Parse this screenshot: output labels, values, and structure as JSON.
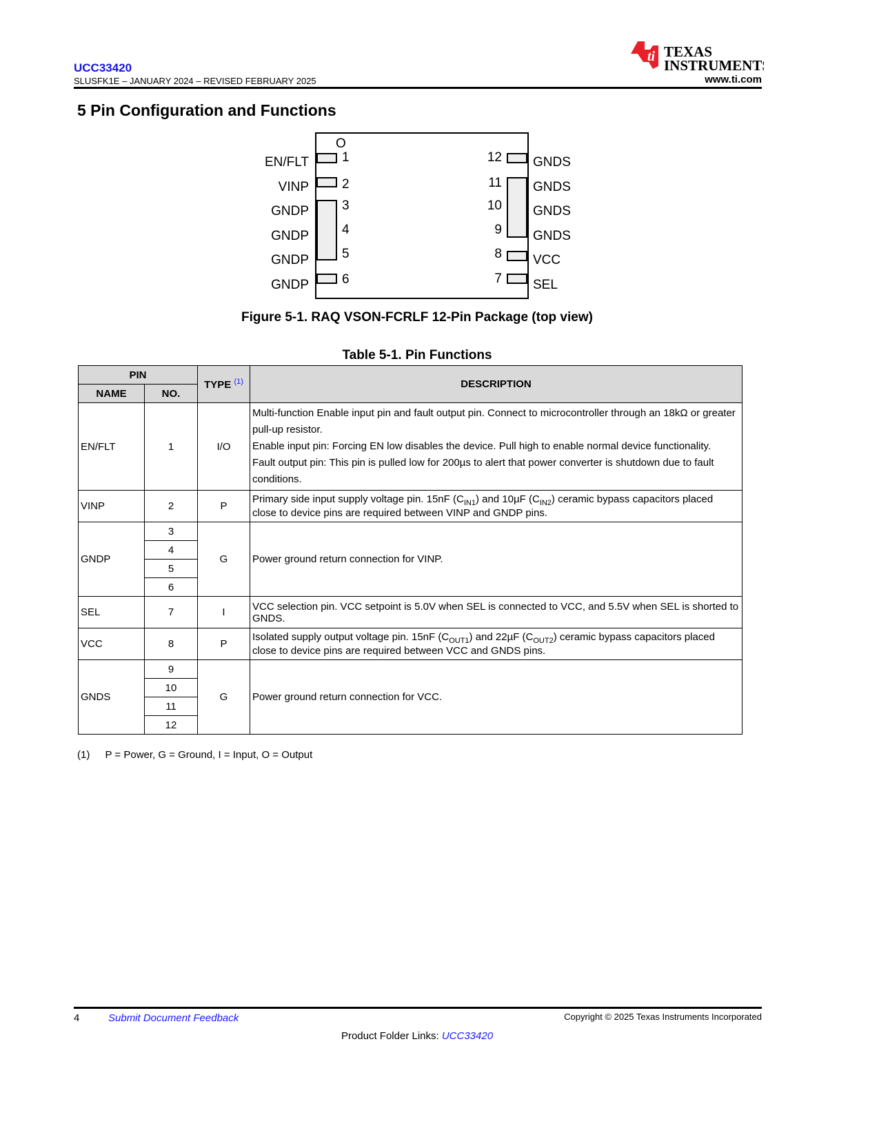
{
  "header": {
    "part": "UCC33420",
    "doc": "SLUSFK1E – JANUARY 2024 – REVISED FEBRUARY 2025",
    "logo_text": [
      "Texas",
      "Instruments"
    ],
    "url": "www.ti.com"
  },
  "section_title": "5 Pin Configuration and Functions",
  "diagram": {
    "pin1_marker": "O",
    "left_pins": [
      {
        "name": "EN/FLT",
        "no": "1"
      },
      {
        "name": "VINP",
        "no": "2"
      },
      {
        "name": "GNDP",
        "no": "3"
      },
      {
        "name": "GNDP",
        "no": "4"
      },
      {
        "name": "GNDP",
        "no": "5"
      },
      {
        "name": "GNDP",
        "no": "6"
      }
    ],
    "right_pins": [
      {
        "name": "GNDS",
        "no": "12"
      },
      {
        "name": "GNDS",
        "no": "11"
      },
      {
        "name": "GNDS",
        "no": "10"
      },
      {
        "name": "GNDS",
        "no": "9"
      },
      {
        "name": "VCC",
        "no": "8"
      },
      {
        "name": "SEL",
        "no": "7"
      }
    ]
  },
  "figure_caption": "Figure 5-1. RAQ VSON-FCRLF 12-Pin Package (top view)",
  "table_title": "Table 5-1. Pin Functions",
  "table": {
    "h_pin": "PIN",
    "h_name": "NAME",
    "h_no": "NO.",
    "h_type": "TYPE",
    "h_type_note": "(1)",
    "h_desc": "DESCRIPTION",
    "rows": [
      {
        "name": "EN/FLT",
        "no": [
          "1"
        ],
        "type": "I/O",
        "desc": [
          "Multi-function Enable input pin and fault output pin. Connect to microcontroller through an 18kΩ or greater pull-up resistor.",
          "Enable input pin: Forcing EN low disables the device. Pull high to enable normal device functionality.",
          "Fault output pin: This pin is pulled low for 200µs to alert that power converter is shutdown due to fault conditions."
        ]
      },
      {
        "name": "VINP",
        "no": [
          "2"
        ],
        "type": "P",
        "desc_parts": [
          "Primary side input supply voltage pin. 15nF (C",
          "IN1",
          ") and 10µF (C",
          "IN2",
          ") ceramic bypass capacitors placed close to device pins are required between VINP and GNDP pins."
        ]
      },
      {
        "name": "GNDP",
        "no": [
          "3",
          "4",
          "5",
          "6"
        ],
        "type": "G",
        "desc": "Power ground return connection for VINP."
      },
      {
        "name": "SEL",
        "no": [
          "7"
        ],
        "type": "I",
        "desc": "VCC selection pin. VCC setpoint is 5.0V when SEL is connected to VCC, and 5.5V when SEL is shorted to GNDS."
      },
      {
        "name": "VCC",
        "no": [
          "8"
        ],
        "type": "P",
        "desc_parts": [
          "Isolated supply output voltage pin. 15nF (C",
          "OUT1",
          ") and 22µF (C",
          "OUT2",
          ") ceramic bypass capacitors placed close to device pins are required between VCC and GNDS pins."
        ]
      },
      {
        "name": "GNDS",
        "no": [
          "9",
          "10",
          "11",
          "12"
        ],
        "type": "G",
        "desc": "Power ground return connection for VCC."
      }
    ]
  },
  "footnote": {
    "mark": "(1)",
    "text": "P = Power, G = Ground, I = Input, O = Output"
  },
  "footer": {
    "page": "4",
    "feedback": "Submit Document Feedback",
    "copyright": "Copyright © 2025 Texas Instruments Incorporated",
    "folder_label": "Product Folder Links: ",
    "folder_link": "UCC33420"
  },
  "colors": {
    "link": "#1a1aff",
    "ti_red": "#e8202a",
    "header_fill": "#d9d9d9"
  }
}
